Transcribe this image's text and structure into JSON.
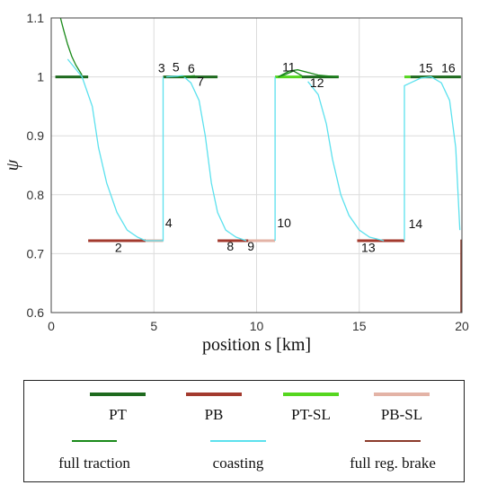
{
  "chart_data": {
    "type": "line",
    "xlabel": "position s [km]",
    "ylabel": "ψ",
    "xlim": [
      0,
      20
    ],
    "ylim": [
      0.6,
      1.1
    ],
    "xticks": [
      "0",
      "5",
      "10",
      "15",
      "20"
    ],
    "yticks": [
      "0.6",
      "0.7",
      "0.8",
      "0.9",
      "1",
      "1.1"
    ],
    "grid": true,
    "series": [
      {
        "name": "coasting",
        "color": "#5ce1ee",
        "segments": [
          [
            [
              0.8,
              1.03
            ],
            [
              1.5,
              1.0
            ],
            [
              2.0,
              0.95
            ],
            [
              2.3,
              0.88
            ],
            [
              2.7,
              0.82
            ],
            [
              3.2,
              0.77
            ],
            [
              3.7,
              0.74
            ],
            [
              4.2,
              0.728
            ],
            [
              4.6,
              0.722
            ]
          ],
          [
            [
              4.6,
              0.722
            ],
            [
              5.45,
              0.722
            ],
            [
              5.45,
              1.0
            ]
          ],
          [
            [
              5.6,
              1.0
            ],
            [
              6.4,
              1.002
            ],
            [
              6.8,
              0.99
            ],
            [
              7.2,
              0.96
            ],
            [
              7.5,
              0.9
            ],
            [
              7.8,
              0.82
            ],
            [
              8.1,
              0.77
            ],
            [
              8.5,
              0.74
            ],
            [
              9.0,
              0.728
            ],
            [
              9.5,
              0.722
            ]
          ],
          [
            [
              10.9,
              0.722
            ],
            [
              10.9,
              1.0
            ]
          ],
          [
            [
              12.5,
              0.992
            ],
            [
              13.0,
              0.97
            ],
            [
              13.4,
              0.92
            ],
            [
              13.7,
              0.86
            ],
            [
              14.1,
              0.8
            ],
            [
              14.5,
              0.765
            ],
            [
              15.0,
              0.74
            ],
            [
              15.5,
              0.728
            ],
            [
              16.2,
              0.722
            ]
          ],
          [
            [
              17.2,
              0.722
            ],
            [
              17.2,
              0.985
            ],
            [
              17.5,
              0.99
            ],
            [
              18.0,
              0.998
            ],
            [
              18.5,
              1.0
            ],
            [
              19.0,
              0.99
            ],
            [
              19.4,
              0.96
            ],
            [
              19.7,
              0.88
            ],
            [
              19.9,
              0.74
            ]
          ]
        ]
      },
      {
        "name": "full traction",
        "color": "#1a8a1a",
        "segments": [
          [
            [
              0.45,
              1.1
            ],
            [
              0.6,
              1.08
            ],
            [
              0.8,
              1.055
            ],
            [
              1.0,
              1.035
            ],
            [
              1.2,
              1.02
            ],
            [
              1.5,
              1.003
            ]
          ],
          [
            [
              11.05,
              1.0
            ],
            [
              11.4,
              1.004
            ],
            [
              11.8,
              1.01
            ],
            [
              12.3,
              1.0
            ]
          ],
          [
            [
              11.05,
              1.0
            ],
            [
              11.6,
              1.01
            ],
            [
              12.0,
              1.012
            ],
            [
              13.0,
              1.003
            ],
            [
              14.0,
              1.0
            ]
          ],
          [
            [
              6.2,
              1.0
            ],
            [
              7.0,
              1.002
            ]
          ]
        ]
      },
      {
        "name": "full reg. brake",
        "color": "#8b3a2a",
        "segments": [
          [
            [
              19.95,
              0.724
            ],
            [
              19.95,
              0.6
            ]
          ]
        ]
      }
    ],
    "flat_segments": [
      {
        "name": "PT",
        "color": "#1e6a1e",
        "x": [
          0.2,
          1.8
        ],
        "y": 1.0
      },
      {
        "name": "PT",
        "color": "#1e6a1e",
        "x": [
          5.45,
          8.1
        ],
        "y": 1.0
      },
      {
        "name": "PT-SL",
        "color": "#55d61f",
        "x": [
          10.9,
          12.2
        ],
        "y": 1.0
      },
      {
        "name": "PT",
        "color": "#1e6a1e",
        "x": [
          12.2,
          14.0
        ],
        "y": 1.0
      },
      {
        "name": "PT-SL",
        "color": "#55d61f",
        "x": [
          17.2,
          17.5
        ],
        "y": 1.0
      },
      {
        "name": "PT",
        "color": "#1e6a1e",
        "x": [
          17.5,
          19.95
        ],
        "y": 1.0
      },
      {
        "name": "PB",
        "color": "#a33a2e",
        "x": [
          1.8,
          4.6
        ],
        "y": 0.722
      },
      {
        "name": "PB-SL",
        "color": "#e3b3a6",
        "x": [
          4.6,
          5.45
        ],
        "y": 0.722
      },
      {
        "name": "PB",
        "color": "#a33a2e",
        "x": [
          8.1,
          9.6
        ],
        "y": 0.722
      },
      {
        "name": "PB-SL",
        "color": "#e3b3a6",
        "x": [
          9.6,
          10.9
        ],
        "y": 0.722
      },
      {
        "name": "PB",
        "color": "#a33a2e",
        "x": [
          14.9,
          17.2
        ],
        "y": 0.722
      }
    ],
    "annotations": [
      {
        "text": "2",
        "x": 3.1,
        "y": 0.703
      },
      {
        "text": "3",
        "x": 5.2,
        "y": 1.008
      },
      {
        "text": "4",
        "x": 5.55,
        "y": 0.745
      },
      {
        "text": "5",
        "x": 5.9,
        "y": 1.009
      },
      {
        "text": "6",
        "x": 6.65,
        "y": 1.007
      },
      {
        "text": "7",
        "x": 7.1,
        "y": 0.985
      },
      {
        "text": "8",
        "x": 8.55,
        "y": 0.705
      },
      {
        "text": "9",
        "x": 9.55,
        "y": 0.705
      },
      {
        "text": "10",
        "x": 11.0,
        "y": 0.745
      },
      {
        "text": "11",
        "x": 11.25,
        "y": 1.009
      },
      {
        "text": "12",
        "x": 12.6,
        "y": 0.983
      },
      {
        "text": "13",
        "x": 15.1,
        "y": 0.703
      },
      {
        "text": "14",
        "x": 17.4,
        "y": 0.743
      },
      {
        "text": "15",
        "x": 17.9,
        "y": 1.008
      },
      {
        "text": "16",
        "x": 19.0,
        "y": 1.008
      }
    ]
  },
  "legend": {
    "items": [
      {
        "label": "PT",
        "color": "#1e6a1e",
        "style": "thick"
      },
      {
        "label": "PB",
        "color": "#a33a2e",
        "style": "thick"
      },
      {
        "label": "PT-SL",
        "color": "#55d61f",
        "style": "thick"
      },
      {
        "label": "PB-SL",
        "color": "#e3b3a6",
        "style": "thick"
      },
      {
        "label": "full traction",
        "color": "#1a8a1a",
        "style": "thin"
      },
      {
        "label": "coasting",
        "color": "#5ce1ee",
        "style": "thin"
      },
      {
        "label": "full reg. brake",
        "color": "#8b3a2a",
        "style": "thin"
      }
    ]
  }
}
